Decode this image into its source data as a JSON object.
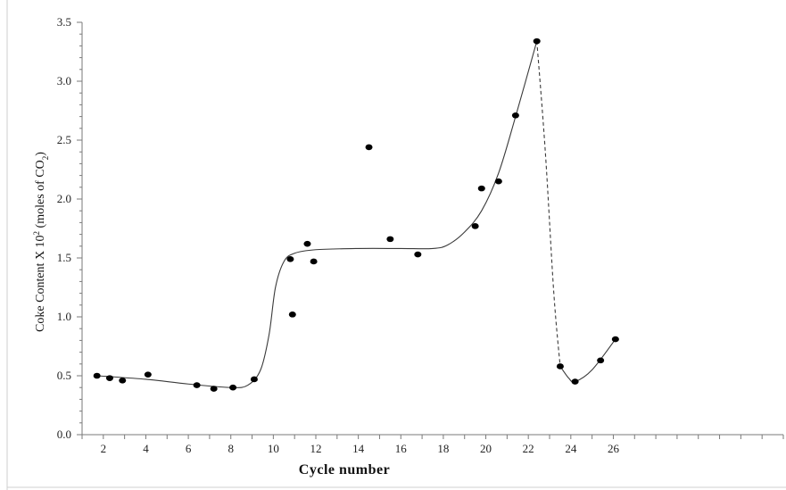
{
  "chart_data": {
    "type": "scatter",
    "title": "",
    "xlabel": "Cycle number",
    "ylabel_main": "Coke Content X 10",
    "ylabel_sup": "2",
    "ylabel_paren": " (moles of CO",
    "ylabel_sub": "2",
    "ylabel_end": ")",
    "xlim": [
      1,
      34
    ],
    "ylim": [
      0,
      3.5
    ],
    "x_ticks": [
      2,
      4,
      6,
      8,
      10,
      12,
      14,
      16,
      18,
      20,
      22,
      24,
      26
    ],
    "y_ticks": [
      "0.0",
      "0.5",
      "1.0",
      "1.5",
      "2.0",
      "2.5",
      "3.0",
      "3.5"
    ],
    "grid": false,
    "series": [
      {
        "type": "scatter",
        "points": [
          [
            1.7,
            0.5
          ],
          [
            2.3,
            0.48
          ],
          [
            2.9,
            0.46
          ],
          [
            4.1,
            0.51
          ],
          [
            6.4,
            0.42
          ],
          [
            7.2,
            0.39
          ],
          [
            8.1,
            0.4
          ],
          [
            9.1,
            0.47
          ],
          [
            10.8,
            1.49
          ],
          [
            10.9,
            1.02
          ],
          [
            11.6,
            1.62
          ],
          [
            11.9,
            1.47
          ],
          [
            14.5,
            2.44
          ],
          [
            15.5,
            1.66
          ],
          [
            16.8,
            1.53
          ],
          [
            19.5,
            1.77
          ],
          [
            19.8,
            2.09
          ],
          [
            20.6,
            2.15
          ],
          [
            21.4,
            2.71
          ],
          [
            22.4,
            3.34
          ],
          [
            23.5,
            0.58
          ],
          [
            24.2,
            0.45
          ],
          [
            25.4,
            0.63
          ],
          [
            26.1,
            0.81
          ]
        ]
      },
      {
        "type": "line",
        "style": "solid",
        "points": [
          [
            1.7,
            0.5
          ],
          [
            4.0,
            0.47
          ],
          [
            6.0,
            0.43
          ],
          [
            8.0,
            0.4
          ],
          [
            8.8,
            0.42
          ],
          [
            9.4,
            0.55
          ],
          [
            9.8,
            0.85
          ],
          [
            10.1,
            1.25
          ],
          [
            10.5,
            1.47
          ],
          [
            11.0,
            1.54
          ],
          [
            12.0,
            1.57
          ],
          [
            14.0,
            1.58
          ],
          [
            16.0,
            1.58
          ],
          [
            17.5,
            1.58
          ],
          [
            18.2,
            1.61
          ],
          [
            19.0,
            1.72
          ],
          [
            19.8,
            1.9
          ],
          [
            20.6,
            2.22
          ],
          [
            21.4,
            2.7
          ],
          [
            22.4,
            3.34
          ]
        ]
      },
      {
        "type": "line",
        "style": "dashed",
        "points": [
          [
            22.4,
            3.34
          ],
          [
            22.8,
            2.4
          ],
          [
            23.2,
            1.2
          ],
          [
            23.5,
            0.58
          ]
        ]
      },
      {
        "type": "line",
        "style": "solid",
        "points": [
          [
            23.5,
            0.58
          ],
          [
            23.9,
            0.48
          ],
          [
            24.2,
            0.45
          ],
          [
            25.0,
            0.55
          ],
          [
            26.1,
            0.81
          ]
        ]
      }
    ]
  }
}
